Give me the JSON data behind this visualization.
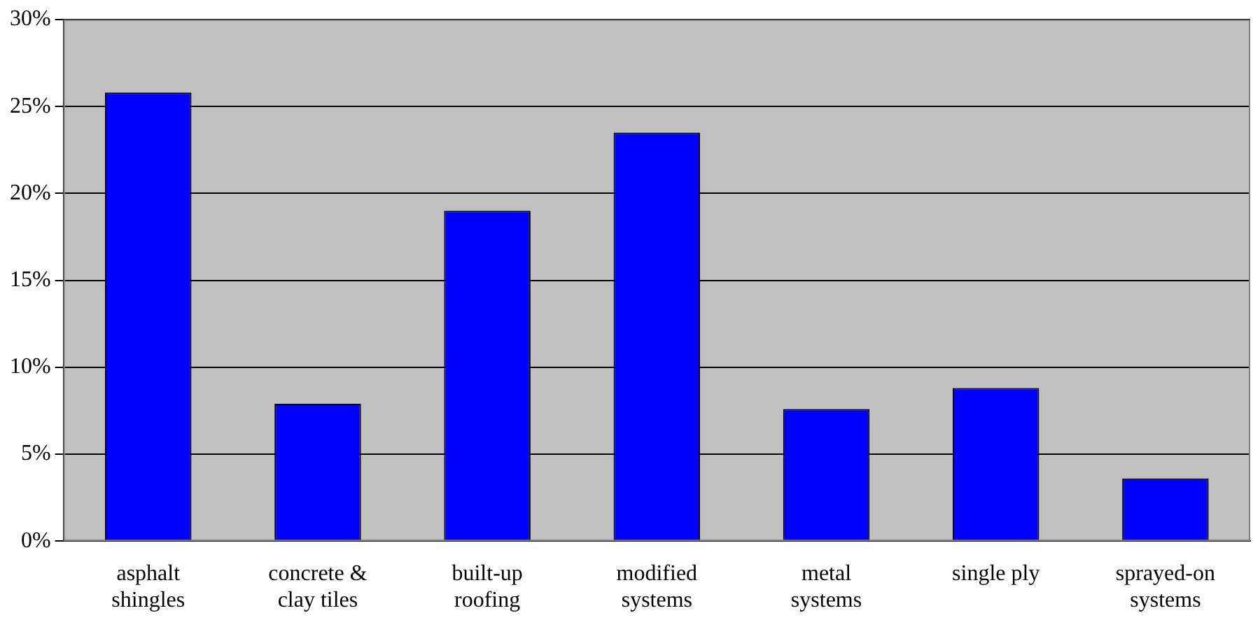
{
  "chart_data": {
    "type": "bar",
    "categories": [
      "asphalt\nshingles",
      "concrete &\nclay tiles",
      "built-up\nroofing",
      "modified\nsystems",
      "metal\nsystems",
      "single ply",
      "sprayed-on\nsystems"
    ],
    "values": [
      25.8,
      7.9,
      19.0,
      23.5,
      7.6,
      8.8,
      3.6
    ],
    "color": "#0000ff",
    "ylim": [
      0,
      30
    ],
    "yticks": [
      {
        "value": 0,
        "label": "0%"
      },
      {
        "value": 5,
        "label": "5%"
      },
      {
        "value": 10,
        "label": "10%"
      },
      {
        "value": 15,
        "label": "15%"
      },
      {
        "value": 20,
        "label": "20%"
      },
      {
        "value": 25,
        "label": "25%"
      },
      {
        "value": 30,
        "label": "30%"
      }
    ],
    "grid": "y",
    "legend": false
  }
}
